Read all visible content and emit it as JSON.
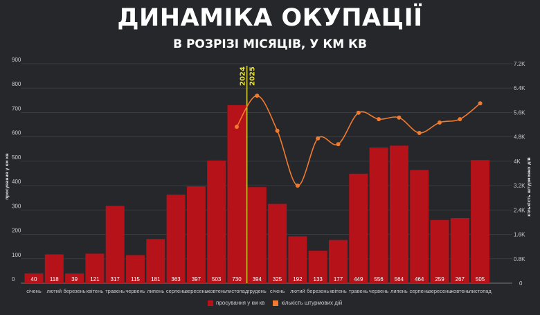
{
  "title": "ДИНАМІКА ОКУПАЦІЇ",
  "subtitle": "В РОЗРІЗІ МІСЯЦІВ, У КМ КВ",
  "chart_data": {
    "type": "bar+line",
    "categories": [
      "січень",
      "лютий",
      "березень",
      "квітень",
      "травень",
      "червень",
      "липень",
      "серпень",
      "вересень",
      "жовтень",
      "листопад",
      "грудень",
      "січень",
      "лютий",
      "березень",
      "квітень",
      "травень",
      "червень",
      "липень",
      "серпень",
      "вересень",
      "жовтень",
      "листопад"
    ],
    "year_marks": [
      "2024",
      "2025"
    ],
    "ylabel": "просування у км кв",
    "y2label": "кількість штурмових дій",
    "ylim": [
      0,
      900
    ],
    "yticks": [
      "0",
      "100",
      "200",
      "300",
      "400",
      "500",
      "600",
      "700",
      "800",
      "900"
    ],
    "y2lim": [
      0,
      7200
    ],
    "y2ticks": [
      "0",
      "0.8K",
      "1.6K",
      "2.4K",
      "3.2K",
      "4K",
      "4.8K",
      "5.6K",
      "6.4K",
      "7.2K"
    ],
    "grid": true,
    "legend_position": "bottom",
    "series": [
      {
        "name": "просування у км кв",
        "type": "bar",
        "axis": "left",
        "color": "#b51219",
        "values": [
          40,
          118,
          39,
          121,
          317,
          115,
          181,
          363,
          397,
          503,
          730,
          394,
          325,
          192,
          133,
          177,
          449,
          556,
          564,
          464,
          259,
          267,
          505
        ]
      },
      {
        "name": "кількість штурмових дій",
        "type": "line",
        "axis": "right",
        "color": "#f07a30",
        "values": [
          null,
          null,
          null,
          null,
          null,
          null,
          null,
          null,
          null,
          null,
          5130,
          6150,
          5000,
          3200,
          4750,
          4560,
          5590,
          5380,
          5430,
          4930,
          5270,
          5380,
          5900
        ]
      }
    ]
  }
}
